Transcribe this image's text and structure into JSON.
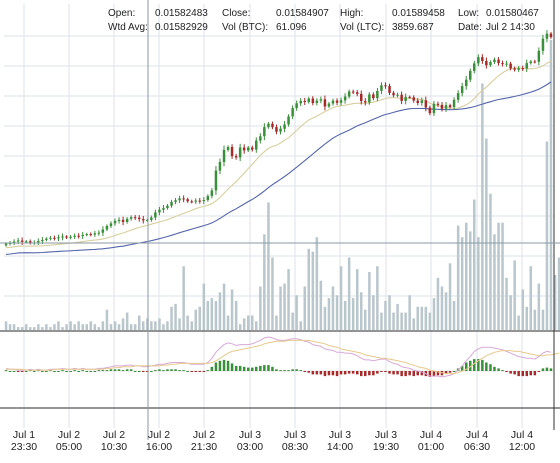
{
  "info_panel": {
    "open_label": "Open:",
    "open_value": "0.01582483",
    "close_label": "Close:",
    "close_value": "0.01584907",
    "high_label": "High:",
    "high_value": "0.01589458",
    "low_label": "Low:",
    "low_value": "0.01580467",
    "wtdavg_label": "Wtd Avg:",
    "wtdavg_value": "0.01582929",
    "volbtc_label": "Vol (BTC):",
    "volbtc_value": "61.096",
    "volltc_label": "Vol (LTC):",
    "volltc_value": "3859.687",
    "date_label": "Date:",
    "date_value": "Jul 2 14:30"
  },
  "colors": {
    "up": "#3a8f3a",
    "down": "#a52a2a",
    "volume": "#b9c6cc",
    "sma_short": "#d8cf9e",
    "sma_long": "#5566aa",
    "macd_line": "#d7a9d7",
    "signal_line": "#e7c98c",
    "grid": "#dde3ea",
    "crosshair": "#8a9aa5"
  },
  "chart_data": {
    "type": "candlestick",
    "x_ticks": [
      {
        "day": "Jul 1",
        "time": "23:30"
      },
      {
        "day": "Jul 2",
        "time": "05:00"
      },
      {
        "day": "Jul 2",
        "time": "10:30"
      },
      {
        "day": "Jul 2",
        "time": "16:00"
      },
      {
        "day": "Jul 2",
        "time": "21:30"
      },
      {
        "day": "Jul 3",
        "time": "03:00"
      },
      {
        "day": "Jul 3",
        "time": "08:30"
      },
      {
        "day": "Jul 3",
        "time": "14:00"
      },
      {
        "day": "Jul 3",
        "time": "19:30"
      },
      {
        "day": "Jul 4",
        "time": "01:00"
      },
      {
        "day": "Jul 4",
        "time": "06:30"
      },
      {
        "day": "Jul 4",
        "time": "12:00"
      }
    ],
    "price_level": [
      21.0,
      21.3,
      21.8,
      22.2,
      21.7,
      21.9,
      21.4,
      21.5,
      22.0,
      22.4,
      22.9,
      23.2,
      23.0,
      23.4,
      23.7,
      23.3,
      23.6,
      24.0,
      23.9,
      24.3,
      24.6,
      24.4,
      24.9,
      25.1,
      26.3,
      27.6,
      28.6,
      29.5,
      29.9,
      29.1,
      30.3,
      30.9,
      30.7,
      30.2,
      29.7,
      29.9,
      30.8,
      32.7,
      33.7,
      34.3,
      35.2,
      36.6,
      37.2,
      37.9,
      37.6,
      36.8,
      36.7,
      37.1,
      36.9,
      37.3,
      38.8,
      40.9,
      48.3,
      51.5,
      56.0,
      57.1,
      53.7,
      53.2,
      56.9,
      55.8,
      56.9,
      56.1,
      59.5,
      61.1,
      64.5,
      65.8,
      64.5,
      62.8,
      63.9,
      65.5,
      68.5,
      71.6,
      73.4,
      74.3,
      73.9,
      75.2,
      73.5,
      74.4,
      74.9,
      72.2,
      73.3,
      74.4,
      73.6,
      74.5,
      75.9,
      77.8,
      77.5,
      76.9,
      74.2,
      73.7,
      76.7,
      75.3,
      78.0,
      80.1,
      79.9,
      77.3,
      76.4,
      76.6,
      74.3,
      75.8,
      75.6,
      74.4,
      73.5,
      74.5,
      71.8,
      69.7,
      73.2,
      72.8,
      71.4,
      72.7,
      72.0,
      74.7,
      77.2,
      79.8,
      82.2,
      85.5,
      88.3,
      90.6,
      89.2,
      87.6,
      88.8,
      89.7,
      88.4,
      88.1,
      88.2,
      86.4,
      85.9,
      86.5,
      86.4,
      88.4,
      89.0,
      88.9,
      93.0,
      97.5,
      99.4,
      98.1
    ],
    "volume": [
      3,
      2,
      2,
      1,
      1,
      2,
      1,
      1,
      2,
      1,
      2,
      1,
      2,
      3,
      1,
      2,
      3,
      2,
      3,
      2,
      2,
      3,
      2,
      1,
      3,
      7,
      2,
      3,
      2,
      4,
      6,
      2,
      2,
      5,
      3,
      4,
      3,
      3,
      4,
      2,
      3,
      8,
      9,
      4,
      22,
      5,
      3,
      7,
      8,
      16,
      10,
      11,
      10,
      13,
      16,
      5,
      14,
      10,
      2,
      4,
      5,
      5,
      3,
      15,
      33,
      44,
      25,
      5,
      15,
      16,
      21,
      6,
      12,
      3,
      15,
      28,
      27,
      32,
      17,
      8,
      11,
      15,
      12,
      22,
      10,
      25,
      11,
      21,
      13,
      7,
      20,
      12,
      22,
      6,
      10,
      12,
      6,
      9,
      6,
      6,
      12,
      4,
      8,
      8,
      8,
      6,
      11,
      18,
      15,
      13,
      23,
      10,
      36,
      32,
      37,
      34,
      45,
      32,
      85,
      66,
      47,
      33,
      37,
      37,
      18,
      12,
      24,
      5,
      14,
      8,
      22,
      7,
      16,
      7,
      65,
      100,
      19,
      25
    ],
    "volume_max": 100,
    "series": [
      {
        "name": "macd",
        "values": [
          0.3,
          0.2,
          0.2,
          0.1,
          0.1,
          0.1,
          0.2,
          0.1,
          0.2,
          0.1,
          0.1,
          0.2,
          0.2,
          0.2,
          0.3,
          0.2,
          0.2,
          0.3,
          0.2,
          0.3,
          0.2,
          0.2,
          0.2,
          0.3,
          0.3,
          0.4,
          0.5,
          0.6,
          0.6,
          0.6,
          0.7,
          0.7,
          0.6,
          0.6,
          0.5,
          0.5,
          0.6,
          0.7,
          0.8,
          0.8,
          0.9,
          1.0,
          1.0,
          1.0,
          1.0,
          0.9,
          0.8,
          0.8,
          0.8,
          0.8,
          1.0,
          1.5,
          2.2,
          2.7,
          3.1,
          3.3,
          3.2,
          3.0,
          3.1,
          3.1,
          3.1,
          3.2,
          3.4,
          3.6,
          3.9,
          4.0,
          3.9,
          3.7,
          3.6,
          3.6,
          3.7,
          3.8,
          3.8,
          3.7,
          3.5,
          3.4,
          3.1,
          3.0,
          2.9,
          2.6,
          2.5,
          2.4,
          2.2,
          2.2,
          2.1,
          2.1,
          2.0,
          1.8,
          1.5,
          1.3,
          1.3,
          1.2,
          1.3,
          1.4,
          1.4,
          1.1,
          0.9,
          0.8,
          0.5,
          0.4,
          0.3,
          0.1,
          0.0,
          -0.1,
          -0.3,
          -0.6,
          -0.6,
          -0.6,
          -0.7,
          -0.6,
          -0.5,
          -0.3,
          0.1,
          0.6,
          1.2,
          1.7,
          2.3,
          2.6,
          2.8,
          2.8,
          2.8,
          2.7,
          2.6,
          2.5,
          2.3,
          2.1,
          1.9,
          1.7,
          1.6,
          1.5,
          1.5,
          1.4,
          1.7,
          2.1,
          2.3,
          2.2
        ]
      },
      {
        "name": "signal",
        "values": [
          0.2,
          0.2,
          0.2,
          0.2,
          0.2,
          0.1,
          0.1,
          0.1,
          0.1,
          0.1,
          0.1,
          0.1,
          0.2,
          0.2,
          0.2,
          0.2,
          0.2,
          0.2,
          0.2,
          0.2,
          0.2,
          0.2,
          0.2,
          0.2,
          0.2,
          0.3,
          0.3,
          0.4,
          0.4,
          0.5,
          0.5,
          0.5,
          0.6,
          0.6,
          0.6,
          0.6,
          0.6,
          0.6,
          0.6,
          0.7,
          0.7,
          0.8,
          0.8,
          0.9,
          0.9,
          0.9,
          0.9,
          0.9,
          0.9,
          0.9,
          0.9,
          1.0,
          1.2,
          1.5,
          1.8,
          2.1,
          2.3,
          2.4,
          2.5,
          2.6,
          2.7,
          2.8,
          2.9,
          3.0,
          3.2,
          3.3,
          3.4,
          3.5,
          3.5,
          3.5,
          3.6,
          3.6,
          3.6,
          3.6,
          3.6,
          3.6,
          3.5,
          3.4,
          3.3,
          3.2,
          3.0,
          2.9,
          2.8,
          2.6,
          2.5,
          2.4,
          2.3,
          2.2,
          2.1,
          1.9,
          1.8,
          1.7,
          1.6,
          1.5,
          1.5,
          1.4,
          1.3,
          1.2,
          1.1,
          1.0,
          0.8,
          0.7,
          0.5,
          0.4,
          0.3,
          0.1,
          0.0,
          -0.1,
          -0.2,
          -0.3,
          -0.3,
          -0.3,
          -0.2,
          0.0,
          0.2,
          0.5,
          0.9,
          1.2,
          1.5,
          1.8,
          2.0,
          2.2,
          2.3,
          2.4,
          2.4,
          2.4,
          2.3,
          2.3,
          2.2,
          2.1,
          2.0,
          1.9,
          1.8,
          1.8,
          1.9,
          1.9,
          2.0,
          2.1
        ]
      }
    ]
  }
}
